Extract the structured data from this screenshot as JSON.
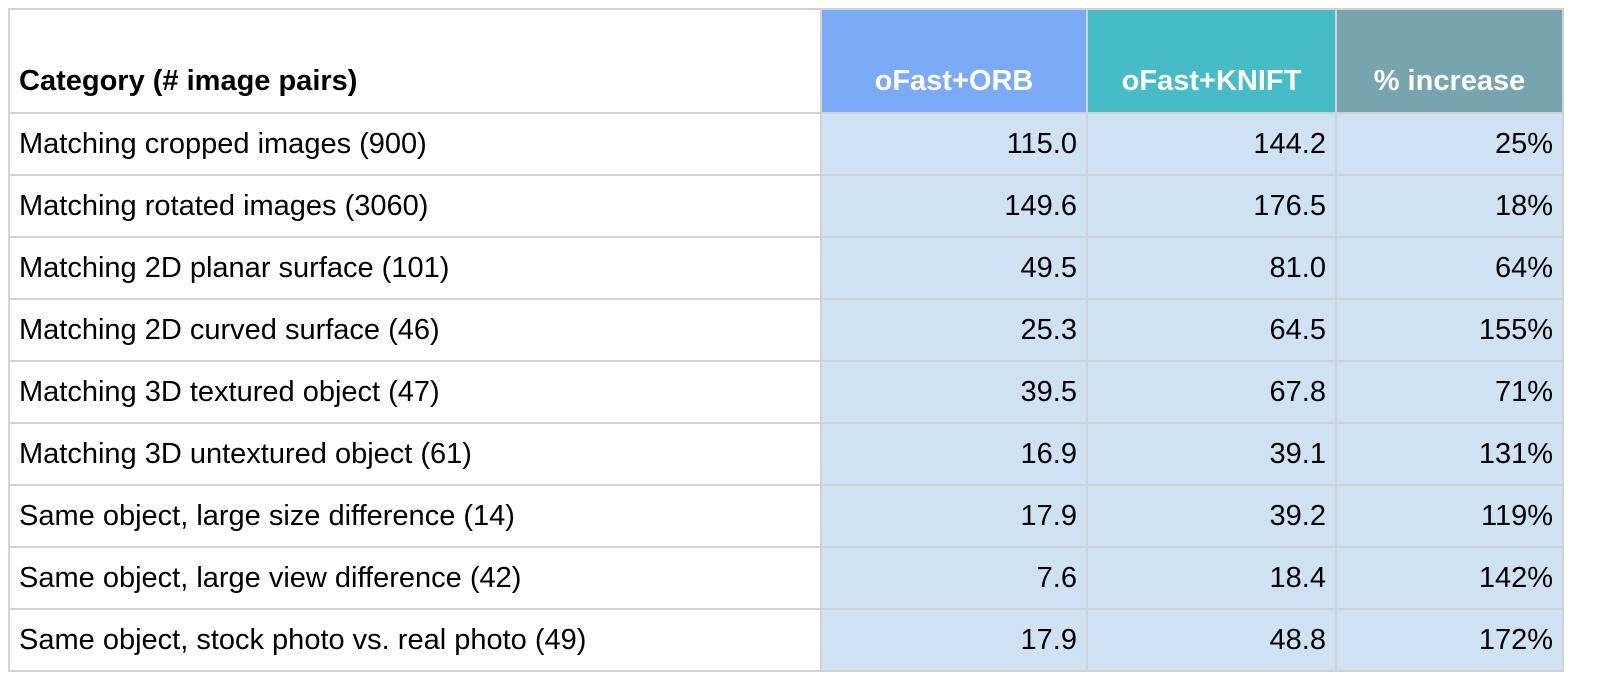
{
  "table": {
    "header": [
      "Category (# image pairs)",
      "oFast+ORB",
      "oFast+KNIFT",
      "% increase"
    ],
    "rows": [
      [
        "Matching cropped images (900)",
        "115.0",
        "144.2",
        "25%"
      ],
      [
        "Matching rotated images (3060)",
        "149.6",
        "176.5",
        "18%"
      ],
      [
        "Matching 2D planar surface (101)",
        "49.5",
        "81.0",
        "64%"
      ],
      [
        "Matching 2D curved surface (46)",
        "25.3",
        "64.5",
        "155%"
      ],
      [
        "Matching 3D textured object (47)",
        "39.5",
        "67.8",
        "71%"
      ],
      [
        "Matching 3D untextured object (61)",
        "16.9",
        "39.1",
        "131%"
      ],
      [
        "Same object, large size difference (14)",
        "17.9",
        "39.2",
        "119%"
      ],
      [
        "Same object, large view difference (42)",
        "7.6",
        "18.4",
        "142%"
      ],
      [
        "Same object, stock photo vs. real photo (49)",
        "17.9",
        "48.8",
        "172%"
      ]
    ]
  }
}
